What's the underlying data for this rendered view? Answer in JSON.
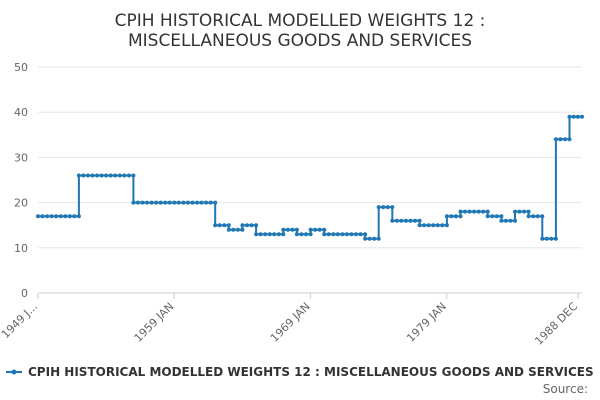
{
  "chart_data": {
    "type": "line",
    "title_lines": [
      "CPIH HISTORICAL MODELLED WEIGHTS 12 :",
      "MISCELLANEOUS GOODS AND SERVICES"
    ],
    "xlabel": "",
    "ylabel": "",
    "ylim": [
      0,
      50
    ],
    "yticks": [
      "0",
      "10",
      "20",
      "30",
      "40",
      "50"
    ],
    "xticks": [
      {
        "label": "1949 J...",
        "year": 1949
      },
      {
        "label": "1959 JAN",
        "year": 1959
      },
      {
        "label": "1969 JAN",
        "year": 1969
      },
      {
        "label": "1979 JAN",
        "year": 1979
      },
      {
        "label": "1988 DEC",
        "year": 1988
      }
    ],
    "x_range": [
      "1949 JAN",
      "1988 DEC"
    ],
    "grid": "horizontal",
    "legend_position": "bottom",
    "color": "#1f77b4",
    "series": [
      {
        "name": "CPIH HISTORICAL MODELLED WEIGHTS 12 : MISCELLANEOUS GOODS AND SERVICES",
        "segments": [
          {
            "from": 1949,
            "to": 1951,
            "value": 17
          },
          {
            "from": 1952,
            "to": 1955,
            "value": 26
          },
          {
            "from": 1956,
            "to": 1961,
            "value": 20
          },
          {
            "from": 1962,
            "to": 1962,
            "value": 15
          },
          {
            "from": 1963,
            "to": 1963,
            "value": 14
          },
          {
            "from": 1964,
            "to": 1964,
            "value": 15
          },
          {
            "from": 1965,
            "to": 1966,
            "value": 13
          },
          {
            "from": 1967,
            "to": 1967,
            "value": 14
          },
          {
            "from": 1968,
            "to": 1968,
            "value": 13
          },
          {
            "from": 1969,
            "to": 1969,
            "value": 14
          },
          {
            "from": 1970,
            "to": 1972,
            "value": 13
          },
          {
            "from": 1973,
            "to": 1973,
            "value": 12
          },
          {
            "from": 1974,
            "to": 1974,
            "value": 19
          },
          {
            "from": 1975,
            "to": 1976,
            "value": 16
          },
          {
            "from": 1977,
            "to": 1978,
            "value": 15
          },
          {
            "from": 1979,
            "to": 1979,
            "value": 17
          },
          {
            "from": 1980,
            "to": 1981,
            "value": 18
          },
          {
            "from": 1982,
            "to": 1982,
            "value": 17
          },
          {
            "from": 1983,
            "to": 1983,
            "value": 16
          },
          {
            "from": 1984,
            "to": 1984,
            "value": 18
          },
          {
            "from": 1985,
            "to": 1985,
            "value": 17
          },
          {
            "from": 1986,
            "to": 1986,
            "value": 12
          },
          {
            "from": 1987,
            "to": 1987,
            "value": 34
          },
          {
            "from": 1988,
            "to": 1988,
            "value": 39
          }
        ]
      }
    ]
  },
  "source_label": "Source:"
}
